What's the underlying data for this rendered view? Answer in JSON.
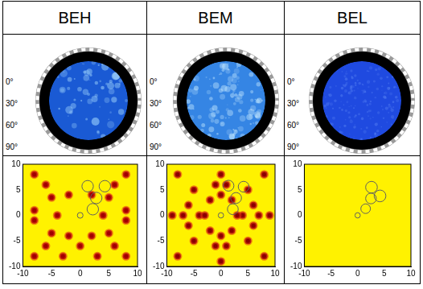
{
  "headers": [
    "BEH",
    "BEM",
    "BEL"
  ],
  "stereogram": {
    "angle_labels": [
      "0°",
      "30°",
      "60°",
      "90°"
    ]
  },
  "chart_data": [
    {
      "type": "scatter",
      "xlim": [
        -10,
        10
      ],
      "ylim": [
        -10,
        10
      ],
      "xticks": [
        -10,
        -5,
        0,
        5,
        10
      ],
      "yticks": [
        -10,
        -5,
        0,
        5,
        10
      ],
      "grid": false,
      "series": [
        {
          "color": "#a00000",
          "x": [
            -4,
            4,
            -8,
            8,
            -8,
            8,
            -5,
            5,
            -5,
            5,
            -2,
            2,
            -2,
            2,
            0,
            -6,
            6,
            -6,
            6,
            -8,
            8,
            -8,
            8,
            -3,
            3
          ],
          "y": [
            0,
            0,
            1,
            1,
            -1,
            -1,
            3.5,
            3.5,
            -3.5,
            -3.5,
            4,
            4,
            -4,
            -4,
            -6,
            6,
            6,
            -6,
            -6,
            8,
            8,
            -8,
            -8,
            -8,
            -8
          ]
        }
      ],
      "circles": {
        "color": "#606060",
        "x": [
          0,
          1.3,
          4.3,
          2.8,
          2.2
        ],
        "y": [
          0,
          5.7,
          5.7,
          3.4,
          1.2
        ],
        "r": [
          0.5,
          1,
          1,
          1,
          1
        ]
      }
    },
    {
      "type": "scatter",
      "xlim": [
        -10,
        10
      ],
      "ylim": [
        -10,
        10
      ],
      "xticks": [
        -10,
        -5,
        0,
        5,
        10
      ],
      "yticks": [
        -10,
        -5,
        0,
        5,
        10
      ],
      "grid": false,
      "series": [
        {
          "color": "#8a0000",
          "x": [
            -4,
            4,
            -3,
            3,
            -7,
            7,
            -9,
            9,
            0,
            0,
            0,
            0,
            -2,
            2,
            -2,
            2,
            -5,
            5,
            -5,
            5,
            -6,
            6,
            -6,
            6,
            -1,
            1,
            -1,
            1,
            -8,
            8,
            -8,
            8
          ],
          "y": [
            0,
            0,
            0,
            0,
            0,
            0,
            0,
            0,
            4,
            -4,
            8,
            -9,
            3,
            3,
            -3,
            -3,
            5,
            5,
            -5,
            -5,
            2,
            2,
            -2,
            -2,
            6,
            6,
            -6,
            -6,
            8,
            8,
            -8,
            -8
          ]
        }
      ],
      "circles": {
        "color": "#606060",
        "x": [
          0,
          1.4,
          4.2,
          2.8,
          2.2
        ],
        "y": [
          0,
          5.8,
          5.6,
          3.4,
          1.2
        ],
        "r": [
          0.5,
          1,
          1,
          1,
          1
        ]
      }
    },
    {
      "type": "scatter",
      "xlim": [
        -10,
        10
      ],
      "ylim": [
        -10,
        10
      ],
      "xticks": [
        -10,
        -5,
        0,
        5,
        10
      ],
      "yticks": [
        -10,
        -5,
        0,
        5,
        10
      ],
      "grid": false,
      "series": [
        {
          "color": "#a00000",
          "x": [],
          "y": []
        }
      ],
      "circles": {
        "color": "#606060",
        "x": [
          0,
          1.5,
          2.5,
          4.2,
          2.6
        ],
        "y": [
          0,
          1.3,
          3.3,
          3.8,
          5.5
        ],
        "r": [
          0.5,
          0.9,
          1,
          1.1,
          1.1
        ]
      }
    }
  ]
}
